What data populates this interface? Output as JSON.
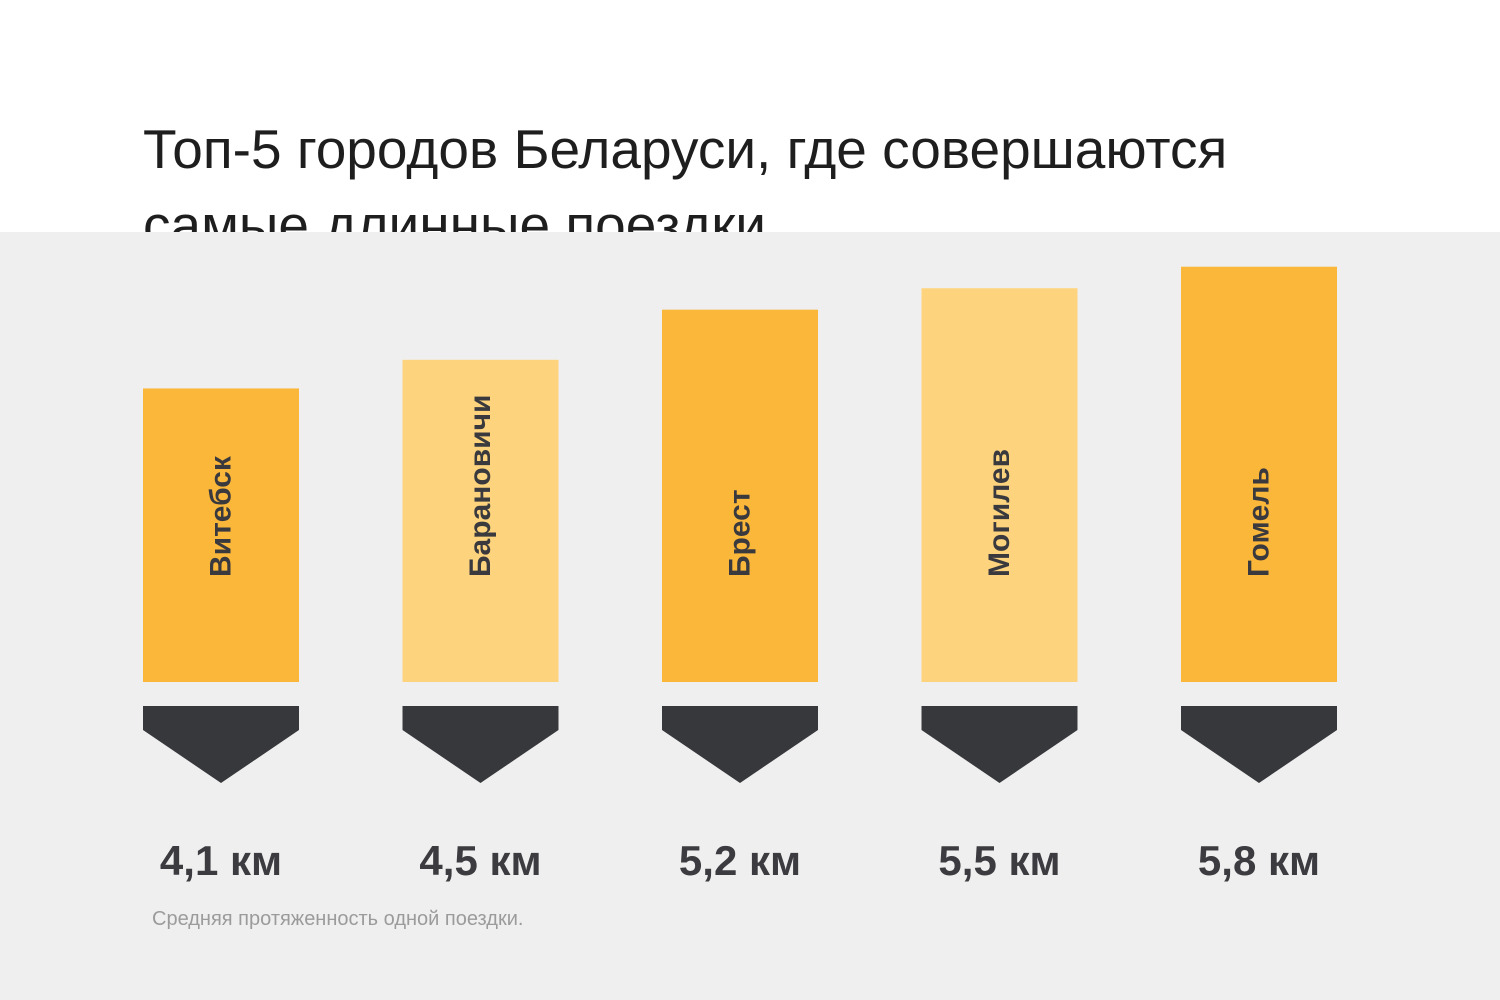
{
  "title": {
    "line1": "Топ-5 городов Беларуси, где совершаются",
    "line2": "самые длинные поездки"
  },
  "footnote": "Средняя протяженность одной поездки.",
  "colors": {
    "bar_dark": "#fbb73a",
    "bar_light": "#fdd47d",
    "marker": "#37383c",
    "panel_bg": "#efefef",
    "value_text": "#3c3c40"
  },
  "chart_data": {
    "type": "bar",
    "categories": [
      "Витебск",
      "Барановичи",
      "Брест",
      "Могилев",
      "Гомель"
    ],
    "values": [
      4.1,
      4.5,
      5.2,
      5.5,
      5.8
    ],
    "value_labels": [
      "4,1 км",
      "4,5 км",
      "5,2 км",
      "5,5 км",
      "5,8 км"
    ],
    "bar_shades": [
      "dark",
      "light",
      "dark",
      "light",
      "dark"
    ],
    "unit": "км",
    "title": "",
    "xlabel": "",
    "ylabel": "",
    "grid": false,
    "legend": "none"
  }
}
